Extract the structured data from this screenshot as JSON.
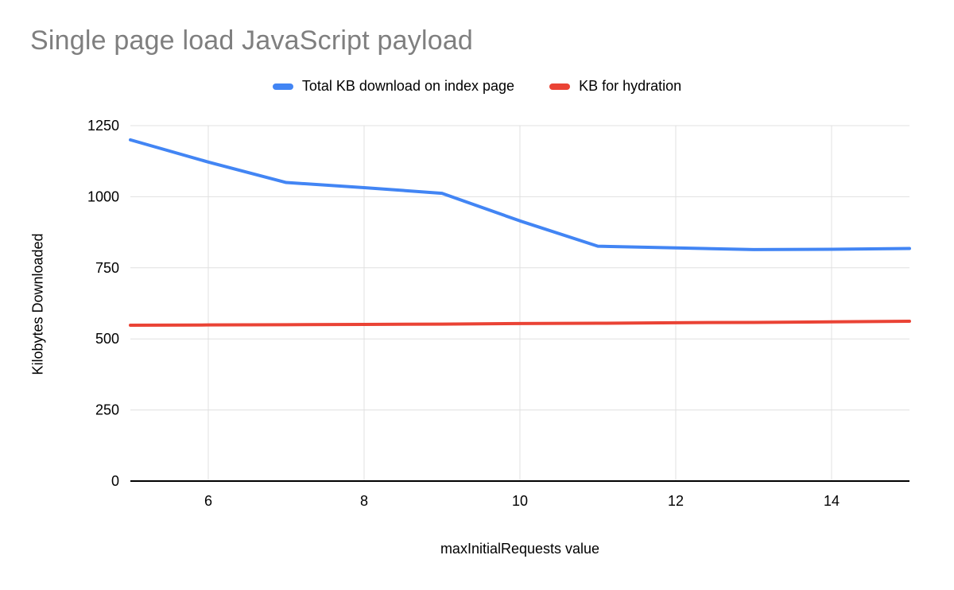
{
  "page": {
    "title": "Single page load JavaScript payload"
  },
  "chart_data": {
    "type": "line",
    "title": "Single page load JavaScript payload",
    "xlabel": "maxInitialRequests value",
    "ylabel": "Kilobytes Downloaded",
    "x": [
      5,
      6,
      7,
      8,
      9,
      10,
      11,
      12,
      13,
      14,
      15
    ],
    "series": [
      {
        "name": "Total KB download on index page",
        "color": "#4285f4",
        "values": [
          1200,
          1122,
          1050,
          1032,
          1012,
          915,
          826,
          820,
          814,
          815,
          818
        ]
      },
      {
        "name": "KB for hydration",
        "color": "#ea4335",
        "values": [
          548,
          549,
          550,
          551,
          552,
          554,
          555,
          557,
          558,
          560,
          562
        ]
      }
    ],
    "xlim": [
      5,
      15
    ],
    "ylim": [
      0,
      1250
    ],
    "xticks": [
      6,
      8,
      10,
      12,
      14
    ],
    "yticks": [
      0,
      250,
      500,
      750,
      1000,
      1250
    ],
    "grid": true,
    "legend_position": "top",
    "colors": {
      "gridline": "#e0e0e0",
      "axis": "#000000",
      "tick_label": "#000000",
      "title": "#7f7f7f"
    }
  }
}
